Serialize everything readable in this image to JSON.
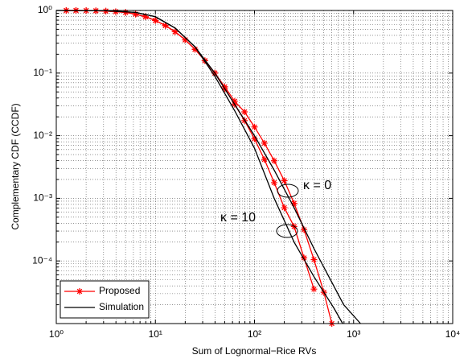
{
  "chart_data": {
    "type": "line",
    "xlabel": "Sum of Lognormal−Rice RVs",
    "ylabel": "Complementary CDF (CCDF)",
    "xscale": "log",
    "yscale": "log",
    "xlim": [
      1,
      10000
    ],
    "ylim": [
      1e-05,
      1
    ],
    "xticks": [
      {
        "value": 1,
        "label": "10⁰"
      },
      {
        "value": 10,
        "label": "10¹"
      },
      {
        "value": 100,
        "label": "10²"
      },
      {
        "value": 1000,
        "label": "10³"
      },
      {
        "value": 10000,
        "label": "10⁴"
      }
    ],
    "yticks": [
      {
        "value": 0.0001,
        "label": "10⁻⁴"
      },
      {
        "value": 0.001,
        "label": "10⁻³"
      },
      {
        "value": 0.01,
        "label": "10⁻²"
      },
      {
        "value": 0.1,
        "label": "10⁻¹"
      },
      {
        "value": 1,
        "label": "10⁰"
      }
    ],
    "grid": true,
    "minor_grid": true,
    "legend_position": "lower left",
    "legend": [
      {
        "name": "Proposed",
        "color": "#ff0000",
        "marker": "*"
      },
      {
        "name": "Simulation",
        "color": "#000000",
        "marker": "none"
      }
    ],
    "series": [
      {
        "legend": 0,
        "x": [
          1.26,
          1.58,
          2,
          2.51,
          3.16,
          3.98,
          5.01,
          6.31,
          7.94,
          10,
          12.6,
          15.8,
          20,
          25.1,
          31.6,
          39.8,
          50.1,
          63.1,
          79.4,
          100,
          126,
          158,
          200,
          251,
          316,
          398,
          501,
          603
        ],
        "values": [
          1,
          1,
          0.995,
          0.989,
          0.977,
          0.955,
          0.933,
          0.871,
          0.794,
          0.692,
          0.575,
          0.457,
          0.339,
          0.24,
          0.158,
          0.1,
          0.0603,
          0.0355,
          0.024,
          0.0138,
          0.00759,
          0.00398,
          0.00191,
          0.000832,
          0.000316,
          0.000105,
          3.16e-05,
          1e-05
        ]
      },
      {
        "legend": 0,
        "x": [
          1.26,
          1.58,
          2,
          2.51,
          3.16,
          3.98,
          5.01,
          6.31,
          7.94,
          10,
          12.6,
          15.8,
          20,
          25.1,
          31.6,
          39.8,
          50.1,
          63.1,
          79.4,
          100,
          126,
          158,
          200,
          251,
          316,
          398
        ],
        "values": [
          1,
          1,
          0.995,
          0.989,
          0.977,
          0.955,
          0.933,
          0.871,
          0.794,
          0.692,
          0.575,
          0.457,
          0.339,
          0.24,
          0.158,
          0.1,
          0.0562,
          0.0316,
          0.0174,
          0.00891,
          0.00417,
          0.00178,
          0.000708,
          0.000355,
          0.000112,
          3.55e-05
        ]
      },
      {
        "legend": 1,
        "x": [
          1,
          3.16,
          6.31,
          10,
          15.8,
          25.1,
          39.8,
          63.1,
          100,
          158,
          251,
          398,
          631,
          794,
          1175
        ],
        "values": [
          1,
          0.989,
          0.933,
          0.794,
          0.525,
          0.263,
          0.1,
          0.0316,
          0.01,
          0.00282,
          0.000708,
          0.000158,
          3.98e-05,
          2e-05,
          1e-05
        ]
      },
      {
        "legend": 1,
        "x": [
          1,
          3.16,
          6.31,
          10,
          15.8,
          25.1,
          39.8,
          63.1,
          100,
          158,
          251,
          398,
          631,
          776
        ],
        "values": [
          1,
          0.989,
          0.933,
          0.794,
          0.525,
          0.263,
          0.0891,
          0.0251,
          0.00631,
          0.001,
          0.0002,
          5.62e-05,
          1.78e-05,
          1e-05
        ]
      }
    ],
    "annotations": [
      "κ = 0",
      "κ = 10"
    ]
  }
}
